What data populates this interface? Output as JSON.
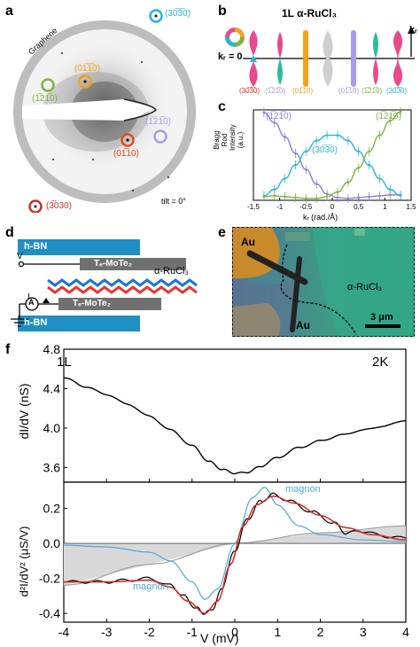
{
  "panels": {
    "a": {
      "letter": "a",
      "graphene_label": "Graphene",
      "tilt_label": "tilt = 0°",
      "spots": [
        {
          "label": "(30̅3̅0)",
          "color": "#29b6d8"
        },
        {
          "label": "(01̅1̅0)",
          "color": "#f2a21e"
        },
        {
          "label": "(1̅21̅0)",
          "color": "#7cb342"
        },
        {
          "label": "(1̅21̅0)",
          "color": "#a99be8"
        },
        {
          "label": "(01̅10)",
          "color": "#e64a19"
        },
        {
          "label": "(3̅030)",
          "color": "#d32f2f"
        }
      ]
    },
    "b": {
      "letter": "b",
      "title": "1L α-RuCl₃",
      "axis_label": "kᵣ",
      "zero_label": "kᵣ = 0",
      "wheel_label": "π",
      "rods": [
        {
          "label": "(30̅3̅0)",
          "color": "#d32f2f"
        },
        {
          "label": "(1̅21̅0)",
          "color": "#a99be8"
        },
        {
          "label": "(01̅10)",
          "color": "#f2a21e"
        },
        {
          "label": "(01̅10)",
          "color": "#a99be8"
        },
        {
          "label": "(1̅21̅0)",
          "color": "#7cb342"
        },
        {
          "label": "(30̅3̅0)",
          "color": "#29b6d8"
        }
      ]
    },
    "c": {
      "letter": "c",
      "ylabel": "Bragg Rod\nIntensity (a.u.)",
      "xlabel": "kᵣ (rad./Å)",
      "curve_labels": [
        {
          "text": "(1̅21̅0)",
          "color": "#8f7ddc"
        },
        {
          "text": "(30̅3̅0)",
          "color": "#29b6d8"
        },
        {
          "text": "(1̅21̅0)",
          "color": "#7cb342"
        }
      ]
    },
    "d": {
      "letter": "d",
      "hbn_label": "h-BN",
      "mote_label": "Tₑ-MoTe₂",
      "rucl_label": "α-RuCl₃",
      "v_label": "V",
      "i_label": "I",
      "a_label": "A"
    },
    "e": {
      "letter": "e",
      "au_label": "Au",
      "rucl_label": "α-RuCl₃",
      "scale_label": "3 μm"
    },
    "f": {
      "letter": "f",
      "layer_label": "1L",
      "temp_label": "2K",
      "top_ylabel": "dI/dV (nS)",
      "bottom_ylabel": "d²I/dV² (μS/V)",
      "xlabel": "V (mV)",
      "magnon_label": "magnon",
      "top_yticks": [
        "4.8",
        "4.4",
        "4.0",
        "3.6"
      ],
      "bottom_yticks": [
        "0.2",
        "0.0",
        "-0.2",
        "-0.4"
      ],
      "xticks": [
        "-4",
        "-3",
        "-2",
        "-1",
        "0",
        "1",
        "2",
        "3",
        "4"
      ]
    }
  },
  "chart_data": [
    {
      "type": "line",
      "panel": "c",
      "xlabel": "kᵣ (rad./Å)",
      "ylabel": "Bragg Rod Intensity (a.u.)",
      "xlim": [
        -1.5,
        1.5
      ],
      "xticks": [
        "-1.5",
        "-1",
        "-0.5",
        "0",
        "0.5",
        "1",
        "1.5"
      ],
      "x": [
        -1.3,
        -1.1,
        -0.9,
        -0.7,
        -0.5,
        -0.3,
        -0.1,
        0.1,
        0.3,
        0.5,
        0.7,
        0.9,
        1.1,
        1.3
      ],
      "series": [
        {
          "name": "(1̅21̅0)",
          "color": "#8f7ddc",
          "values": [
            0.97,
            0.86,
            0.7,
            0.52,
            0.34,
            0.18,
            0.07,
            0.03,
            0.02,
            0.03,
            0.04,
            0.05,
            0.06,
            0.06
          ]
        },
        {
          "name": "(30̅3̅0)",
          "color": "#29b6d8",
          "values": [
            0.05,
            0.12,
            0.24,
            0.39,
            0.54,
            0.66,
            0.72,
            0.72,
            0.66,
            0.54,
            0.39,
            0.24,
            0.12,
            0.05
          ]
        },
        {
          "name": "(1̅21̅0)",
          "color": "#7cb342",
          "values": [
            0.04,
            0.05,
            0.04,
            0.03,
            0.02,
            0.02,
            0.04,
            0.09,
            0.2,
            0.36,
            0.54,
            0.72,
            0.88,
            0.98
          ]
        }
      ]
    },
    {
      "type": "line",
      "panel": "f-top",
      "xlabel": "V (mV)",
      "ylabel": "dI/dV (nS)",
      "xlim": [
        -4,
        4
      ],
      "ylim": [
        3.45,
        4.8
      ],
      "series": [
        {
          "name": "dI/dV",
          "color": "#000000",
          "points": [
            [
              -4,
              4.51
            ],
            [
              -3.5,
              4.42
            ],
            [
              -3,
              4.34
            ],
            [
              -2.5,
              4.24
            ],
            [
              -2,
              4.12
            ],
            [
              -1.5,
              3.98
            ],
            [
              -1,
              3.82
            ],
            [
              -0.6,
              3.66
            ],
            [
              -0.3,
              3.58
            ],
            [
              0,
              3.54
            ],
            [
              0.3,
              3.55
            ],
            [
              0.6,
              3.61
            ],
            [
              1,
              3.7
            ],
            [
              1.5,
              3.8
            ],
            [
              2,
              3.87
            ],
            [
              2.5,
              3.93
            ],
            [
              3,
              3.98
            ],
            [
              3.5,
              4.02
            ],
            [
              4,
              4.08
            ]
          ]
        }
      ]
    },
    {
      "type": "line",
      "panel": "f-bottom",
      "xlabel": "V (mV)",
      "ylabel": "d²I/dV² (μS/V)",
      "xlim": [
        -4,
        4
      ],
      "ylim": [
        -0.45,
        0.35
      ],
      "series": [
        {
          "name": "data",
          "color": "#000000",
          "points": [
            [
              -4,
              -0.22
            ],
            [
              -3.5,
              -0.22
            ],
            [
              -3,
              -0.22
            ],
            [
              -2.5,
              -0.21
            ],
            [
              -2,
              -0.2
            ],
            [
              -1.5,
              -0.24
            ],
            [
              -1.2,
              -0.3
            ],
            [
              -0.9,
              -0.37
            ],
            [
              -0.7,
              -0.4
            ],
            [
              -0.5,
              -0.37
            ],
            [
              -0.3,
              -0.25
            ],
            [
              0,
              -0.04
            ],
            [
              0.3,
              0.14
            ],
            [
              0.6,
              0.24
            ],
            [
              0.9,
              0.28
            ],
            [
              1.3,
              0.24
            ],
            [
              1.8,
              0.18
            ],
            [
              2.3,
              0.12
            ],
            [
              2.6,
              0.06
            ],
            [
              3,
              0.07
            ],
            [
              3.5,
              0.04
            ],
            [
              4,
              0.03
            ]
          ]
        },
        {
          "name": "fit",
          "color": "#d32f2f",
          "points": [
            [
              -4,
              -0.22
            ],
            [
              -3,
              -0.22
            ],
            [
              -2,
              -0.21
            ],
            [
              -1.5,
              -0.25
            ],
            [
              -1.1,
              -0.33
            ],
            [
              -0.7,
              -0.4
            ],
            [
              -0.4,
              -0.33
            ],
            [
              -0.1,
              -0.12
            ],
            [
              0.2,
              0.1
            ],
            [
              0.5,
              0.22
            ],
            [
              0.9,
              0.27
            ],
            [
              1.4,
              0.23
            ],
            [
              2,
              0.16
            ],
            [
              2.6,
              0.09
            ],
            [
              3.2,
              0.05
            ],
            [
              4,
              0.02
            ]
          ]
        },
        {
          "name": "magnon",
          "color": "#4fa8dc",
          "points": [
            [
              -4,
              -0.01
            ],
            [
              -3,
              -0.02
            ],
            [
              -2,
              -0.05
            ],
            [
              -1.5,
              -0.1
            ],
            [
              -1,
              -0.22
            ],
            [
              -0.7,
              -0.32
            ],
            [
              -0.4,
              -0.26
            ],
            [
              0,
              0.0
            ],
            [
              0.4,
              0.26
            ],
            [
              0.7,
              0.32
            ],
            [
              1,
              0.22
            ],
            [
              1.5,
              0.1
            ],
            [
              2,
              0.05
            ],
            [
              3,
              0.02
            ],
            [
              4,
              0.01
            ]
          ]
        },
        {
          "name": "background",
          "color": "#9e9e9e",
          "points": [
            [
              -4,
              -0.24
            ],
            [
              -2,
              -0.12
            ],
            [
              0,
              0.0
            ],
            [
              2,
              0.06
            ],
            [
              4,
              0.1
            ]
          ]
        }
      ]
    }
  ]
}
